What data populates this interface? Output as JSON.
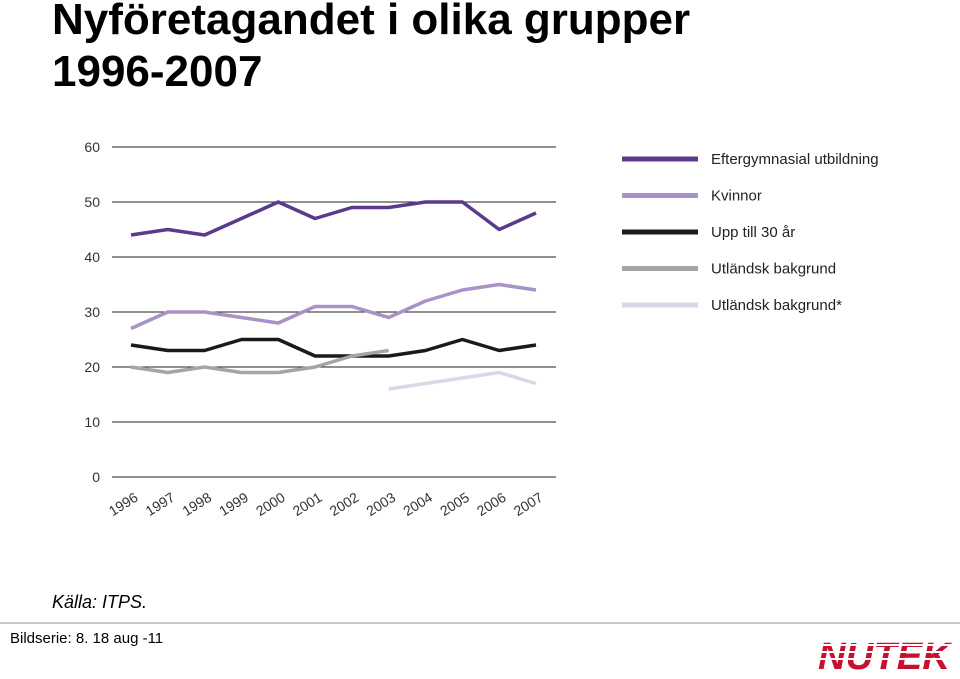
{
  "title": {
    "line1": "Nyföretagandet i olika grupper",
    "line2": "1996-2007"
  },
  "source": "Källa: ITPS.",
  "footer": "Bildserie: 8. 18 aug -11",
  "logo": "NUTEK",
  "chart_data": {
    "type": "line",
    "title": "",
    "xlabel": "",
    "ylabel": "",
    "ylim": [
      0,
      60
    ],
    "yticks": [
      0,
      10,
      20,
      30,
      40,
      50,
      60
    ],
    "grid": true,
    "legend_position": "right",
    "categories": [
      "1996",
      "1997",
      "1998",
      "1999",
      "2000",
      "2001",
      "2002",
      "2003",
      "2004",
      "2005",
      "2006",
      "2007"
    ],
    "series": [
      {
        "name": "Eftergymnasial utbildning",
        "color": "#5b3a8c",
        "values": [
          44,
          45,
          44,
          47,
          50,
          47,
          49,
          49,
          50,
          50,
          45,
          48
        ]
      },
      {
        "name": "Kvinnor",
        "color": "#a892c8",
        "values": [
          27,
          30,
          30,
          29,
          28,
          31,
          31,
          29,
          32,
          34,
          35,
          34
        ]
      },
      {
        "name": "Upp till 30 år",
        "color": "#1a1a1a",
        "values": [
          24,
          23,
          23,
          25,
          25,
          22,
          22,
          22,
          23,
          25,
          23,
          24
        ]
      },
      {
        "name": "Utländsk bakgrund",
        "color": "#a5a5a5",
        "values": [
          20,
          19,
          20,
          19,
          19,
          20,
          22,
          23,
          null,
          null,
          null,
          null
        ]
      },
      {
        "name": "Utländsk bakgrund*",
        "color": "#dcd7e8",
        "values": [
          null,
          null,
          null,
          null,
          null,
          null,
          null,
          16,
          17,
          18,
          19,
          17
        ]
      }
    ]
  }
}
